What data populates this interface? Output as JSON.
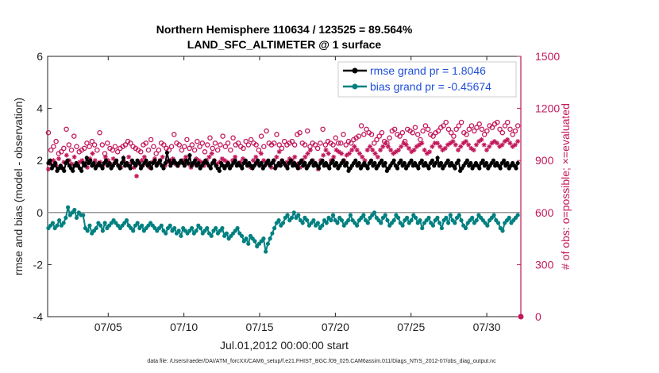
{
  "chart_data": {
    "type": "line",
    "title": "Northern Hemisphere 110634 / 123525 = 89.564%",
    "subtitle": "LAND_SFC_ALTIMETER @ 1 surface",
    "ylabel_left": "rmse and bias (model - observation)",
    "ylabel_right": "# of obs: o=possible; ×=evaluated",
    "xlabel": "Jul.01,2012 00:00:00 start",
    "footnote": "data file: /Users/raeder/DAI/ATM_forcXX/CAM6_setup/f.e21.FHIST_BGC.f09_025.CAM6assim.011/Diags_NTrS_2012-07/obs_diag_output.nc",
    "x_range": [
      1,
      32.25
    ],
    "ylim_left": [
      -4,
      6
    ],
    "ylim_right": [
      0,
      1500
    ],
    "left_ticks": [
      "-4",
      "-2",
      "0",
      "2",
      "4",
      "6"
    ],
    "right_ticks": [
      "0",
      "300",
      "600",
      "900",
      "1200",
      "1500"
    ],
    "x_ticks": [
      {
        "day": 5,
        "label": "07/05"
      },
      {
        "day": 10,
        "label": "07/10"
      },
      {
        "day": 15,
        "label": "07/15"
      },
      {
        "day": 20,
        "label": "07/20"
      },
      {
        "day": 25,
        "label": "07/25"
      },
      {
        "day": 30,
        "label": "07/30"
      }
    ],
    "colors": {
      "rmse": "#000000",
      "bias": "#008080",
      "obs": "#c2185b",
      "zero_line": "#999999",
      "axis": "#222222"
    },
    "series": [
      {
        "name": "rmse grand pr = 1.8046",
        "key": "rmse",
        "values": [
          1.9,
          2.0,
          1.7,
          1.8,
          1.9,
          1.6,
          1.7,
          1.8,
          1.7,
          1.6,
          1.9,
          2.0,
          1.8,
          1.7,
          1.6,
          1.8,
          1.9,
          1.8,
          1.7,
          1.6,
          1.9,
          1.8,
          2.1,
          1.9,
          2.0,
          1.8,
          1.9,
          1.7,
          1.8,
          1.9,
          1.8,
          1.7,
          1.9,
          2.0,
          1.8,
          1.9,
          1.7,
          1.8,
          1.9,
          2.0,
          1.8,
          1.7,
          1.9,
          2.1,
          1.8,
          1.9,
          1.8,
          1.7,
          2.0,
          1.9,
          1.8,
          2.0,
          1.9,
          1.7,
          1.8,
          1.9,
          2.0,
          1.8,
          1.9,
          1.7,
          1.9,
          2.0,
          1.8,
          1.9,
          2.0,
          1.8,
          1.7,
          1.9,
          2.3,
          2.0,
          1.8,
          1.9,
          2.0,
          1.9,
          1.8,
          1.9,
          2.0,
          1.9,
          1.8,
          2.0,
          1.9,
          2.2,
          1.8,
          1.9,
          2.0,
          1.8,
          1.9,
          1.7,
          1.8,
          1.9,
          2.0,
          1.9,
          1.8,
          1.7,
          1.9,
          2.0,
          1.8,
          1.7,
          1.6,
          1.9,
          1.8,
          1.7,
          1.8,
          1.9,
          1.7,
          1.8,
          1.9,
          2.0,
          1.8,
          1.9,
          1.8,
          1.7,
          1.9,
          2.0,
          1.8,
          1.9,
          1.8,
          1.7,
          1.8,
          1.9,
          2.0,
          1.8,
          1.9,
          1.7,
          1.8,
          1.9,
          2.0,
          1.8,
          1.9,
          2.0,
          1.7,
          1.8,
          1.9,
          1.8,
          2.0,
          1.9,
          1.8,
          1.7,
          1.9,
          2.0,
          1.8,
          1.9,
          1.8,
          1.7,
          1.9,
          2.0,
          1.8,
          1.9,
          1.7,
          1.8,
          1.9,
          2.0,
          1.8,
          1.9,
          1.8,
          1.7,
          1.9,
          2.0,
          1.8,
          1.9,
          1.8,
          1.7,
          1.9,
          2.0,
          1.8,
          1.9,
          1.7,
          1.8,
          1.9,
          2.0,
          1.8,
          1.9,
          1.6,
          1.7,
          1.8,
          1.9,
          2.0,
          1.8,
          1.9,
          1.7,
          1.8,
          1.9,
          1.8,
          1.7,
          1.9,
          2.0,
          1.8,
          1.9,
          1.7,
          1.8,
          1.9,
          2.0,
          1.8,
          1.9,
          1.6,
          1.7,
          1.8,
          1.9,
          2.0,
          1.8,
          1.7,
          1.9,
          2.0,
          1.8,
          1.9,
          1.7,
          1.8,
          1.9,
          2.0,
          1.8,
          1.9,
          1.8,
          1.7,
          1.9,
          2.0,
          1.8,
          1.9,
          1.8,
          1.7,
          1.9,
          2.0,
          1.8,
          1.9,
          2.1,
          1.8,
          1.9,
          1.7,
          1.8,
          1.9,
          2.0,
          1.8,
          1.9,
          1.8,
          1.7,
          1.9,
          2.0,
          1.6,
          1.7,
          1.8,
          1.9,
          2.0,
          1.8,
          1.9,
          1.7,
          1.8,
          1.9,
          1.8,
          1.7,
          1.9,
          2.0,
          1.8,
          1.9,
          1.7,
          1.8,
          1.9,
          2.0,
          1.8,
          1.9,
          1.8,
          1.7,
          1.9,
          2.0,
          1.8,
          1.9,
          1.7,
          1.8,
          1.9,
          1.8,
          1.7,
          1.9
        ]
      },
      {
        "name": "bias grand pr = -0.45674",
        "key": "bias",
        "values": [
          -0.6,
          -0.5,
          -0.4,
          -0.6,
          -0.5,
          -0.3,
          -0.5,
          -0.4,
          -0.2,
          0.2,
          -0.1,
          0.0,
          0.1,
          -0.2,
          0.0,
          -0.1,
          -0.1,
          -0.6,
          -0.7,
          -0.5,
          -0.8,
          -0.7,
          -0.6,
          -0.4,
          -0.5,
          -0.7,
          -0.4,
          -0.6,
          -0.5,
          -0.4,
          -0.3,
          -0.4,
          -0.5,
          -0.6,
          -0.5,
          -0.4,
          -0.3,
          -0.5,
          -0.6,
          -0.7,
          -0.5,
          -0.4,
          -0.6,
          -0.5,
          -0.7,
          -0.6,
          -0.5,
          -0.4,
          -0.5,
          -0.6,
          -0.7,
          -0.6,
          -0.5,
          -0.7,
          -0.8,
          -0.6,
          -0.5,
          -0.7,
          -0.6,
          -0.8,
          -0.7,
          -0.9,
          -0.6,
          -0.7,
          -0.8,
          -0.7,
          -0.6,
          -0.8,
          -0.7,
          -0.5,
          -0.6,
          -0.8,
          -0.7,
          -0.6,
          -0.8,
          -0.9,
          -0.7,
          -0.6,
          -0.8,
          -0.7,
          -0.6,
          -0.9,
          -0.8,
          -1.0,
          -0.9,
          -0.8,
          -0.7,
          -0.6,
          -0.8,
          -0.9,
          -1.1,
          -1.0,
          -1.2,
          -0.9,
          -1.0,
          -1.1,
          -1.3,
          -1.2,
          -1.1,
          -1.0,
          -1.5,
          -1.2,
          -1.0,
          -0.8,
          -0.6,
          -0.4,
          -0.3,
          -0.5,
          -0.4,
          -0.2,
          -0.1,
          -0.3,
          -0.2,
          0.0,
          -0.2,
          -0.1,
          -0.3,
          -0.4,
          -0.2,
          -0.3,
          -0.5,
          -0.4,
          -0.3,
          -0.5,
          -0.4,
          -0.6,
          -0.5,
          -0.3,
          -0.4,
          -0.2,
          -0.3,
          -0.1,
          -0.3,
          -0.4,
          -0.2,
          -0.3,
          -0.5,
          -0.4,
          -0.3,
          -0.1,
          -0.3,
          -0.4,
          -0.5,
          -0.3,
          -0.2,
          -0.1,
          -0.3,
          -0.4,
          -0.2,
          -0.1,
          0.0,
          -0.2,
          -0.3,
          -0.4,
          -0.2,
          -0.1,
          -0.3,
          -0.5,
          -0.4,
          -0.3,
          -0.1,
          -0.2,
          -0.4,
          -0.5,
          -0.3,
          -0.2,
          -0.4,
          -0.3,
          -0.1,
          -0.2,
          -0.4,
          -0.3,
          -0.6,
          -0.4,
          -0.3,
          -0.2,
          -0.4,
          -0.5,
          -0.3,
          -0.2,
          -0.4,
          -0.6,
          -0.3,
          -0.2,
          -0.4,
          -0.1,
          -0.3,
          -0.4,
          -0.2,
          -0.1,
          -0.3,
          -0.5,
          -0.6,
          -0.4,
          -0.3,
          -0.2,
          -0.4,
          -0.3,
          -0.1,
          -0.2,
          -0.3,
          -0.4,
          -0.5,
          -0.3,
          -0.2,
          -0.1,
          -0.3,
          -0.4,
          -0.6,
          -0.7,
          -0.4,
          -0.3,
          -0.2,
          -0.4,
          -0.3,
          -0.2,
          -0.1
        ]
      },
      {
        "name": "obs possible",
        "key": "possible",
        "values": [
          1060,
          960,
          980,
          1010,
          940,
          950,
          970,
          1080,
          990,
          960,
          1040,
          980,
          950,
          960,
          970,
          1000,
          980,
          1010,
          990,
          960,
          1060,
          990,
          940,
          1000,
          970,
          960,
          980,
          950,
          970,
          980,
          990,
          1010,
          1000,
          980,
          970,
          960,
          950,
          990,
          1000,
          960,
          1020,
          980,
          940,
          960,
          1000,
          990,
          970,
          960,
          980,
          1050,
          1000,
          990,
          960,
          980,
          1020,
          970,
          990,
          960,
          1010,
          980,
          1000,
          950,
          990,
          1030,
          970,
          1000,
          960,
          990,
          1040,
          980,
          1000,
          960,
          1030,
          990,
          1000,
          980,
          970,
          1010,
          990,
          1020,
          1000,
          990,
          960,
          1040,
          980,
          1070,
          1000,
          990,
          1000,
          1050,
          990,
          970,
          1010,
          990,
          1000,
          1010,
          990,
          1050,
          1060,
          1000,
          990,
          1070,
          980,
          1000,
          990,
          970,
          1000,
          1080,
          990,
          1010,
          1000,
          990,
          1030,
          1000,
          1000,
          1050,
          990,
          1010,
          1000,
          1020,
          1030,
          1040,
          1100,
          1050,
          1080,
          1060,
          1050,
          1000,
          1020,
          1040,
          1060,
          1010,
          1000,
          1030,
          1070,
          1080,
          1050,
          1040,
          1060,
          1010,
          1080,
          1070,
          1060,
          1090,
          1050,
          1020,
          1070,
          1100,
          1080,
          1050,
          1040,
          1060,
          1070,
          1090,
          1100,
          1120,
          1080,
          1060,
          1040,
          1080,
          1100,
          1120,
          1060,
          1050,
          1080,
          1100,
          1070,
          1090,
          1110,
          1080,
          1050,
          1070,
          1100,
          1090,
          1110,
          1120,
          1080,
          1060,
          1100,
          1120,
          1080,
          1050,
          1070,
          1100
        ]
      },
      {
        "name": "obs evaluated",
        "key": "evaluated",
        "values": [
          850,
          880,
          900,
          870,
          910,
          860,
          890,
          930,
          900,
          880,
          920,
          870,
          890,
          900,
          880,
          860,
          910,
          940,
          900,
          880,
          890,
          870,
          920,
          900,
          880,
          910,
          890,
          870,
          860,
          900,
          880,
          920,
          890,
          860,
          810,
          880,
          900,
          920,
          880,
          860,
          890,
          910,
          880,
          900,
          920,
          870,
          890,
          900,
          910,
          880,
          870,
          890,
          900,
          920,
          880,
          860,
          880,
          910,
          900,
          890,
          870,
          900,
          920,
          940,
          900,
          880,
          890,
          910,
          900,
          890,
          870,
          900,
          920,
          880,
          890,
          910,
          890,
          880,
          860,
          900,
          920,
          880,
          940,
          900,
          890,
          880,
          860,
          900,
          920,
          950,
          900,
          880,
          890,
          910,
          900,
          920,
          880,
          860,
          900,
          920,
          940,
          960,
          900,
          880,
          850,
          900,
          930,
          960,
          940,
          900,
          920,
          960,
          950,
          940,
          900,
          930,
          940,
          960,
          980,
          960,
          940,
          920,
          900,
          960,
          980,
          960,
          940,
          920,
          960,
          980,
          1000,
          980,
          960,
          940,
          950,
          960,
          980,
          1000,
          990,
          970,
          950,
          960,
          980,
          990,
          1000,
          960,
          940,
          950,
          980,
          1000,
          1000,
          980,
          960,
          970,
          990,
          1000,
          1010,
          990,
          960,
          980,
          1000,
          1010,
          990,
          970,
          960,
          990,
          1010,
          1020,
          990,
          960,
          980,
          1000,
          1010,
          1000,
          980,
          990,
          1010,
          1020,
          1000,
          980,
          990,
          1010
        ]
      }
    ]
  }
}
